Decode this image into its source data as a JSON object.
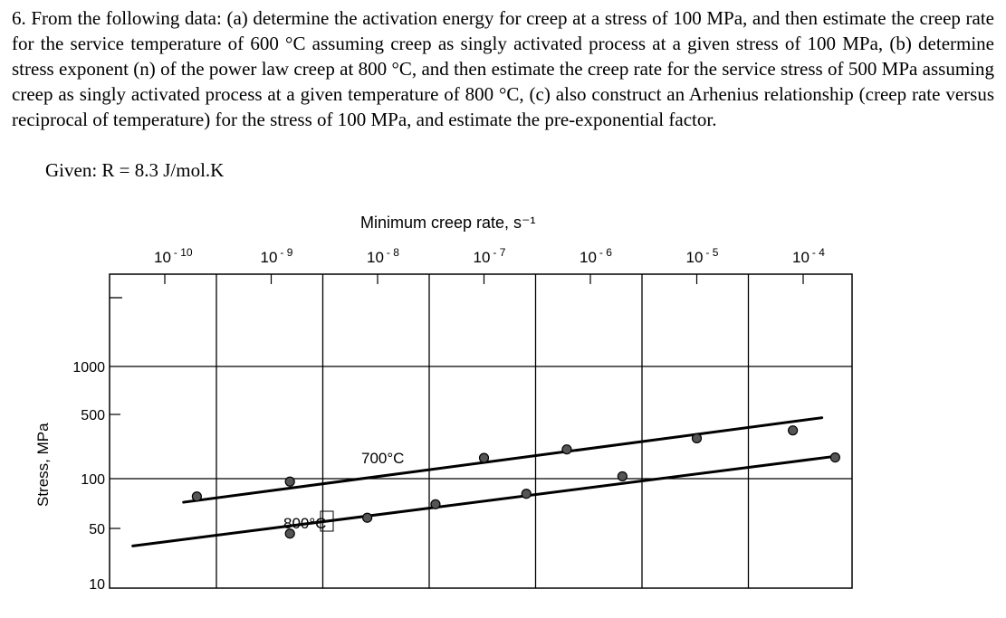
{
  "problem": {
    "text": "6. From the following data: (a) determine the activation energy for creep at a stress of 100 MPa, and then estimate the creep rate for the service temperature of 600 °C assuming creep as singly activated process at a given stress of 100 MPa, (b) determine stress exponent (n) of the power law creep at 800 °C, and then estimate the creep rate for the service stress of 500 MPa assuming creep as singly activated process at a given temperature of 800 °C, (c) also construct an Arhenius relationship (creep rate versus reciprocal of temperature) for the stress of 100 MPa, and estimate the pre-exponential factor.",
    "given": "Given: R = 8.3 J/mol.K"
  },
  "chart_data": {
    "type": "line",
    "title": "Minimum creep rate, s⁻¹",
    "ylabel": "Stress, MPa",
    "x_scale": "log",
    "x_ticks": [
      1e-10,
      1e-09,
      1e-08,
      1e-07,
      1e-06,
      1e-05,
      0.0001
    ],
    "x_tick_labels": [
      {
        "base": "10",
        "exp": "- 10"
      },
      {
        "base": "10",
        "exp": "- 9"
      },
      {
        "base": "10",
        "exp": "- 8"
      },
      {
        "base": "10",
        "exp": "- 7"
      },
      {
        "base": "10",
        "exp": "- 6"
      },
      {
        "base": "10",
        "exp": "- 5"
      },
      {
        "base": "10",
        "exp": "- 4"
      }
    ],
    "y_ticks": [
      10,
      50,
      100,
      500,
      1000
    ],
    "y_tick_labels": [
      "10",
      "50",
      "100",
      "500",
      "1000"
    ],
    "xlim": [
      4e-11,
      0.00021
    ],
    "grid": true,
    "series": [
      {
        "name": "700°C",
        "line": {
          "x": [
            1.5e-10,
            0.00015
          ],
          "y": [
            72,
            460
          ]
        },
        "points": {
          "x": [
            2e-10,
            1.5e-09,
            1e-07,
            6e-07,
            1e-05,
            8e-05
          ],
          "y": [
            78,
            96,
            168,
            208,
            275,
            335
          ]
        }
      },
      {
        "name": "800°C",
        "line": {
          "x": [
            5e-11,
            0.0002
          ],
          "y": [
            30,
            175
          ]
        },
        "points": {
          "x": [
            1.5e-09,
            8e-09,
            3.5e-08,
            2.5e-07,
            2e-06,
            0.0002
          ],
          "y": [
            43,
            58,
            70,
            81,
            106,
            170
          ]
        }
      }
    ]
  }
}
